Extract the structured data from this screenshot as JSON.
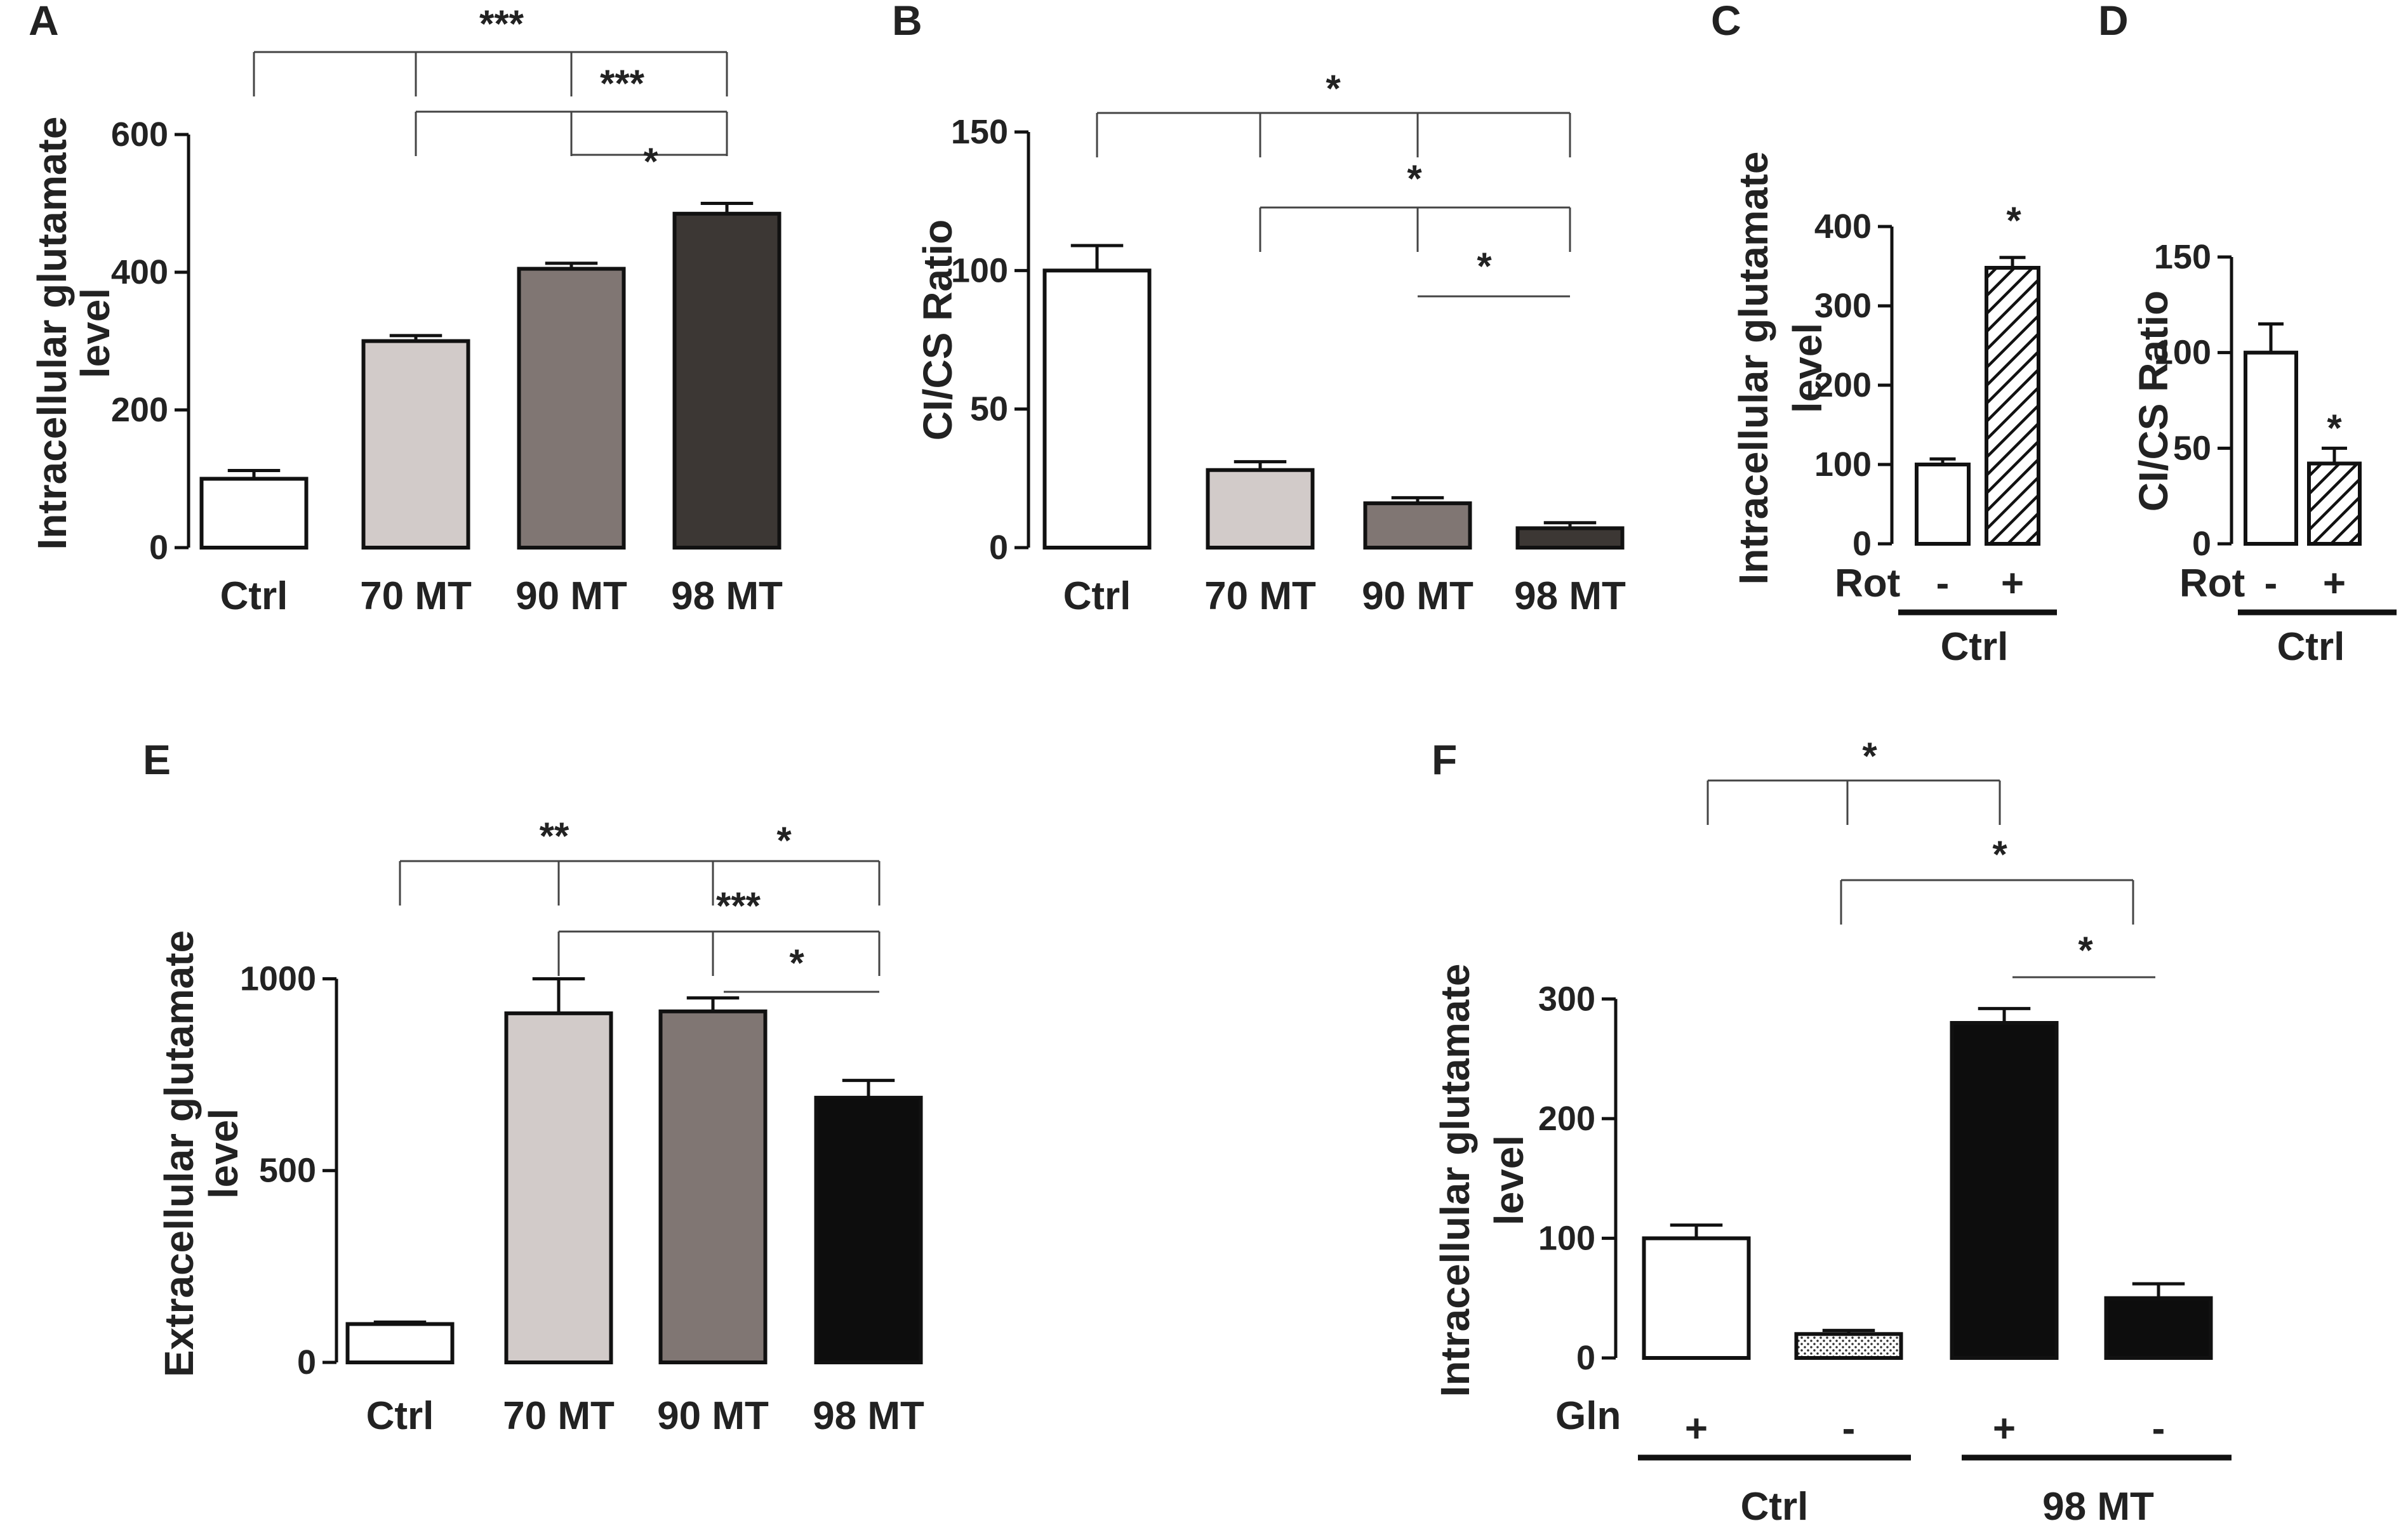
{
  "colors": {
    "white": "#ffffff",
    "light": "#d2cbc9",
    "mid": "#807673",
    "dark": "#3c3734",
    "black": "#0d0d0d",
    "axis": "#111111"
  },
  "chart_data": [
    {
      "panel": "A",
      "type": "bar",
      "categories": [
        "Ctrl",
        "70 MT",
        "90 MT",
        "98 MT"
      ],
      "values": [
        100,
        300,
        405,
        485
      ],
      "errors": [
        12,
        8,
        8,
        15
      ],
      "fills": [
        "white",
        "light",
        "mid",
        "dark"
      ],
      "ylabel": [
        "Intracellular glutamate",
        "level"
      ],
      "ylim": [
        0,
        600
      ],
      "yticks": [
        0,
        200,
        400,
        600
      ],
      "significance": [
        "***",
        "***",
        "*"
      ]
    },
    {
      "panel": "B",
      "type": "bar",
      "categories": [
        "Ctrl",
        "70 MT",
        "90 MT",
        "98 MT"
      ],
      "values": [
        100,
        28,
        16,
        7
      ],
      "errors": [
        9,
        3,
        2,
        2
      ],
      "fills": [
        "white",
        "light",
        "mid",
        "dark"
      ],
      "ylabel": [
        "CI/CS Ratio"
      ],
      "ylim": [
        0,
        150
      ],
      "yticks": [
        0,
        50,
        100,
        150
      ],
      "significance": [
        "*",
        "*",
        "*"
      ]
    },
    {
      "panel": "C",
      "type": "bar",
      "categories": [
        "-",
        "+"
      ],
      "row_label": "Rot",
      "group_label": "Ctrl",
      "values": [
        100,
        348
      ],
      "errors": [
        7,
        13
      ],
      "fills": [
        "white",
        "hatch"
      ],
      "ylabel": [
        "Intracellular glutamate",
        "level"
      ],
      "ylim": [
        0,
        400
      ],
      "yticks": [
        0,
        100,
        200,
        300,
        400
      ],
      "significance": [
        "*"
      ]
    },
    {
      "panel": "D",
      "type": "bar",
      "categories": [
        "-",
        "+"
      ],
      "row_label": "Rot",
      "group_label": "Ctrl",
      "values": [
        100,
        42
      ],
      "errors": [
        15,
        8
      ],
      "fills": [
        "white",
        "hatch"
      ],
      "ylabel": [
        "CI/CS Ratio"
      ],
      "ylim": [
        0,
        150
      ],
      "yticks": [
        0,
        50,
        100,
        150
      ],
      "significance": [
        "*"
      ]
    },
    {
      "panel": "E",
      "type": "bar",
      "categories": [
        "Ctrl",
        "70 MT",
        "90 MT",
        "98 MT"
      ],
      "values": [
        100,
        910,
        915,
        690
      ],
      "errors": [
        5,
        90,
        35,
        45
      ],
      "fills": [
        "white",
        "light",
        "mid",
        "black"
      ],
      "ylabel": [
        "Extracellular glutamate",
        "level"
      ],
      "ylim": [
        0,
        1100
      ],
      "yticks": [
        0,
        500,
        1000
      ],
      "significance": [
        "**",
        "***",
        "*",
        "*"
      ]
    },
    {
      "panel": "F",
      "type": "bar",
      "categories": [
        "+",
        "-",
        "+",
        "-"
      ],
      "row_label": "Gln",
      "group_labels": [
        "Ctrl",
        "98 MT"
      ],
      "values": [
        100,
        20,
        280,
        50
      ],
      "errors": [
        11,
        3,
        12,
        12
      ],
      "fills": [
        "white",
        "dots",
        "black",
        "black"
      ],
      "ylabel": [
        "Intracellular glutamate",
        "level"
      ],
      "ylim": [
        0,
        350
      ],
      "yticks": [
        0,
        100,
        200,
        300
      ],
      "significance": [
        "*",
        "*",
        "*"
      ]
    }
  ]
}
